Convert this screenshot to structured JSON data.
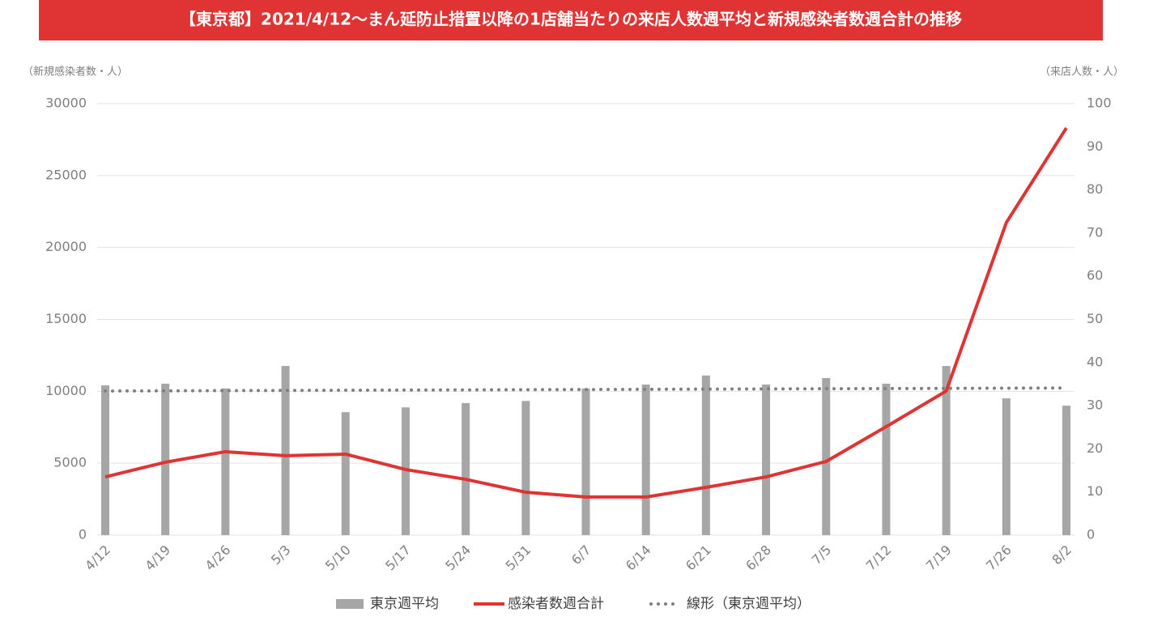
{
  "chart_data": {
    "type": "combo",
    "title": "【東京都】2021/4/12～まん延防止措置以降の1店舗当たりの来店人数週平均と新規感染者数週合計の推移",
    "ylabel": "（新規感染者数・人）",
    "y2label": "（来店人数・人）",
    "categories": [
      "4/12",
      "4/19",
      "4/26",
      "5/3",
      "5/10",
      "5/17",
      "5/24",
      "5/31",
      "6/7",
      "6/14",
      "6/21",
      "6/28",
      "7/5",
      "7/12",
      "7/19",
      "7/26",
      "8/2"
    ],
    "ylim": [
      0,
      30000
    ],
    "yticks": [
      0,
      5000,
      10000,
      15000,
      20000,
      25000,
      30000
    ],
    "y2lim": [
      0,
      100
    ],
    "y2ticks": [
      0,
      10,
      20,
      30,
      40,
      50,
      60,
      70,
      80,
      90,
      100
    ],
    "grid": true,
    "series": [
      {
        "name": "東京週平均",
        "type": "bar",
        "axis": "y2",
        "color": "#a6a6a6",
        "values": [
          34.7,
          35.1,
          34.0,
          39.2,
          28.5,
          29.6,
          30.6,
          31.1,
          34.0,
          34.9,
          37.0,
          34.9,
          36.4,
          35.1,
          39.2,
          31.7,
          30.0
        ]
      },
      {
        "name": "感染者数週合計",
        "type": "line",
        "color": "#e03333",
        "values": [
          4050,
          5070,
          5800,
          5520,
          5630,
          4560,
          3880,
          2980,
          2650,
          2650,
          3320,
          4050,
          5120,
          7540,
          10020,
          21730,
          28310
        ]
      },
      {
        "name": "線形（東京週平均）",
        "type": "dotted",
        "axis": "y2",
        "color": "#7f7f7f",
        "values": [
          33.4,
          33.44,
          33.49,
          33.53,
          33.58,
          33.62,
          33.66,
          33.71,
          33.75,
          33.79,
          33.84,
          33.88,
          33.93,
          33.97,
          34.01,
          34.06,
          34.1
        ]
      }
    ]
  }
}
